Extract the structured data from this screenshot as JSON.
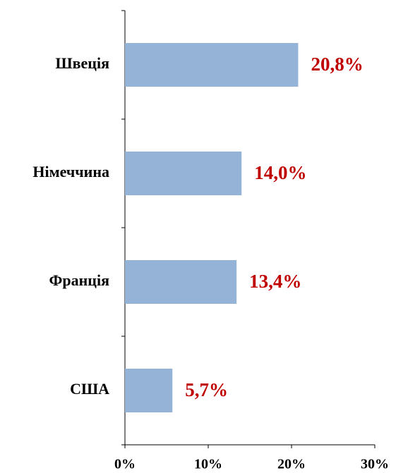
{
  "chart_data": {
    "type": "barh",
    "categories": [
      "Швеція",
      "Німеччина",
      "Франція",
      "США"
    ],
    "values": [
      20.8,
      14.0,
      13.4,
      5.7
    ],
    "value_labels": [
      "20,8%",
      "14,0%",
      "13,4%",
      "5,7%"
    ],
    "color": "#95b3d7",
    "label_color": "#c00000",
    "xlim": [
      0,
      30
    ],
    "xticks": [
      {
        "value": 0,
        "label": "0%"
      },
      {
        "value": 10,
        "label": "10%"
      },
      {
        "value": 20,
        "label": "20%"
      },
      {
        "value": 30,
        "label": "30%"
      }
    ],
    "grid": false
  }
}
